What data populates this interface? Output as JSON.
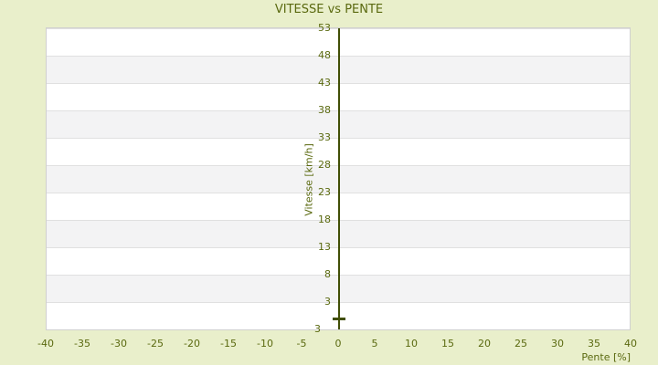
{
  "chart_data": {
    "type": "scatter",
    "title": "VITESSE vs PENTE",
    "xlabel": "Pente [%]",
    "ylabel": "Vitesse [km/h]",
    "x_ticks": [
      -40,
      -35,
      -30,
      -25,
      -20,
      -15,
      -10,
      -5,
      0,
      5,
      10,
      15,
      20,
      25,
      30,
      35,
      40
    ],
    "y_ticks": [
      53,
      48,
      43,
      38,
      33,
      28,
      23,
      18,
      13,
      8,
      3
    ],
    "y_axis_min_label": "3",
    "xlim": [
      -40,
      40
    ],
    "ylim": [
      -2,
      53
    ],
    "grid": "horizontal-bands-every-5",
    "legend": "none",
    "series": [
      {
        "name": "vitesse-vs-pente",
        "marker": "small-horizontal-dash",
        "points": [
          {
            "x": 0,
            "y": 0
          }
        ]
      }
    ],
    "colors": {
      "background": "#e9efcb",
      "text": "#5a690f",
      "axis_line": "#414f06",
      "band_light": "#ffffff",
      "band_dark": "#f3f3f4",
      "grid_line": "#e0e0e0",
      "plot_border": "#d0d0d0"
    }
  }
}
